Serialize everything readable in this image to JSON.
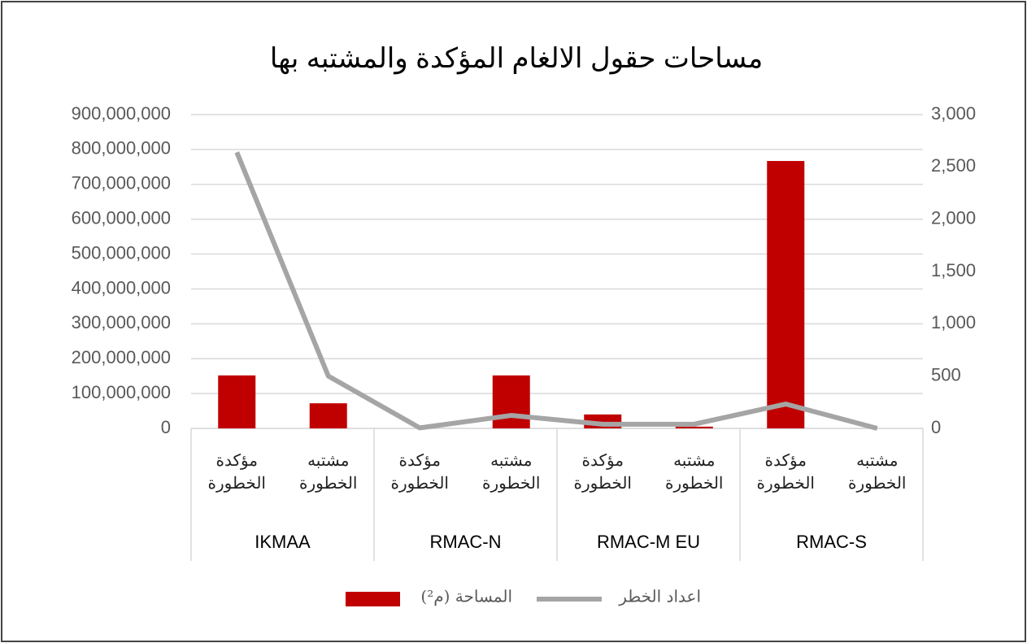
{
  "chart_data": {
    "type": "bar-line",
    "title": "مساحات حقول الالغام المؤكدة والمشتبه بها",
    "categories": [
      "مؤكدة الخطورة",
      "مشتبه الخطورة",
      "مؤكدة الخطورة",
      "مشتبه الخطورة",
      "مؤكدة الخطورة",
      "مشتبه الخطورة",
      "مؤكدة الخطورة",
      "مشتبه الخطورة"
    ],
    "category_groups": [
      "IKMAA",
      "RMAC-N",
      "RMAC-M EU",
      "RMAC-S"
    ],
    "series": [
      {
        "name": "المساحة (م²)",
        "type": "bar",
        "color": "#c00000",
        "values": [
          152000000,
          72000000,
          0,
          152000000,
          40000000,
          5000000,
          767000000,
          0
        ]
      },
      {
        "name": "اعداد الخطر",
        "type": "line",
        "color": "#a5a5a5",
        "axis": "y2",
        "values": [
          2640,
          500,
          5,
          124,
          40,
          40,
          233,
          0
        ]
      }
    ],
    "ylim": [
      0,
      900000000
    ],
    "yticks": [
      0,
      {
        "value": 100000000,
        "label": "100,000,000"
      },
      {
        "value": 200000000,
        "label": "200,000,000"
      },
      {
        "value": 300000000,
        "label": "300,000,000"
      },
      {
        "value": 400000000,
        "label": "400,000,000"
      },
      {
        "value": 500000000,
        "label": "500,000,000"
      },
      {
        "value": 600000000,
        "label": "600,000,000"
      },
      {
        "value": 700000000,
        "label": "700,000,000"
      },
      {
        "value": 800000000,
        "label": "800,000,000"
      },
      {
        "value": 900000000,
        "label": "900,000,000"
      }
    ],
    "y2lim": [
      0,
      3000
    ],
    "y2ticks": [
      0,
      500,
      {
        "value": 1000,
        "label": "1,000"
      },
      {
        "value": 1500,
        "label": "1,500"
      },
      {
        "value": 2000,
        "label": "2,000"
      },
      {
        "value": 2500,
        "label": "2,500"
      },
      {
        "value": 3000,
        "label": "3,000"
      }
    ],
    "grid": true
  }
}
